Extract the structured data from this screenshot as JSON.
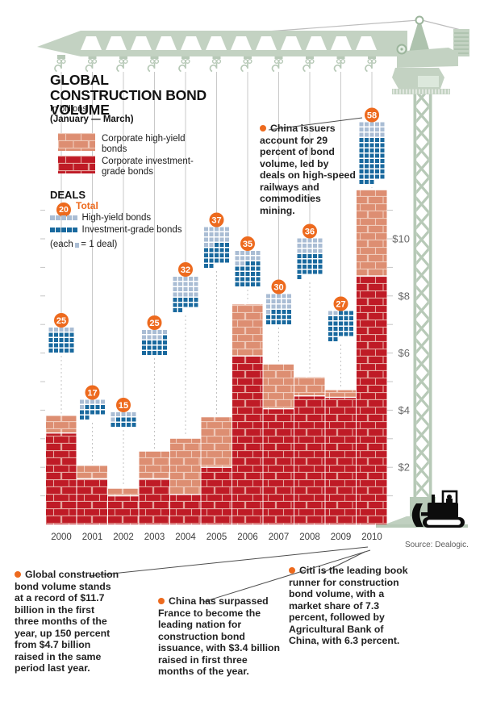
{
  "title": {
    "main": "GLOBAL CONSTRUCTION BOND VOLUME",
    "subtitle": "In billions",
    "period": "(January — March)"
  },
  "deals_legend": {
    "heading": "DEALS",
    "total_example": "20",
    "total_label": "Total",
    "high_yield_label": "High-yield bonds",
    "investment_grade_label": "Investment-grade bonds",
    "note_prefix": "(each",
    "note_suffix": "= 1 deal)"
  },
  "annotations": {
    "china_issuers": "China issuers account for 29 percent of bond volume, led by deals on high-speed railways and commodities mining.",
    "global_volume": "Global construction bond volume stands at a record of $11.7 billion in the first three months of the year, up 150 percent from $4.7 billion raised in the same period last year.",
    "china_surpassed": "China has surpassed France to become the leading nation for construction bond issuance, with $3.4 billion raised in first three months of the year.",
    "citi_leading": "Citi is the leading book runner for construction bond volume, with a market share of 7.3 percent, followed by Agricultural Bank of China, with 6.3 percent."
  },
  "source": "Source: Dealogic.",
  "colors": {
    "accent_orange": "#ed6a1e",
    "brick_high_yield": "#dd8e72",
    "brick_investment_grade": "#bf1b26",
    "deal_high_yield_blue": "#aabdd4",
    "deal_investment_grade_blue": "#19699e",
    "crane_green": "#c3d2c2",
    "axis_gray": "#6a6a6a"
  },
  "chart_data": {
    "type": "bar",
    "stacked": true,
    "unit": "billions USD",
    "period": "January–March",
    "categories": [
      "2000",
      "2001",
      "2002",
      "2003",
      "2004",
      "2005",
      "2006",
      "2007",
      "2008",
      "2009",
      "2010"
    ],
    "series": [
      {
        "name": "Corporate high-yield bonds",
        "values": [
          0.6,
          0.45,
          0.25,
          0.95,
          1.95,
          1.75,
          1.8,
          1.55,
          0.65,
          0.25,
          3.0
        ]
      },
      {
        "name": "Corporate investment-grade bonds",
        "values": [
          3.2,
          1.6,
          1.0,
          1.6,
          1.05,
          2.0,
          5.9,
          4.05,
          4.5,
          4.45,
          8.7
        ]
      }
    ],
    "totals": [
      3.8,
      2.05,
      1.25,
      2.55,
      3.0,
      3.75,
      7.7,
      5.6,
      5.15,
      4.7,
      11.7
    ],
    "deals": {
      "total": [
        25,
        17,
        15,
        25,
        32,
        37,
        35,
        30,
        36,
        27,
        58
      ],
      "high_yield": [
        5,
        6,
        6,
        9,
        20,
        17,
        12,
        16,
        15,
        2,
        15
      ],
      "investment_grade": [
        20,
        11,
        9,
        16,
        12,
        20,
        23,
        14,
        21,
        25,
        43
      ]
    },
    "y_ticks": [
      {
        "label": "$2",
        "value": 2
      },
      {
        "label": "$4",
        "value": 4
      },
      {
        "label": "$6",
        "value": 6
      },
      {
        "label": "$8",
        "value": 8
      },
      {
        "label": "$10",
        "value": 10
      }
    ],
    "ylim": [
      0,
      12
    ],
    "legend_position": "top-left",
    "grid": false
  }
}
